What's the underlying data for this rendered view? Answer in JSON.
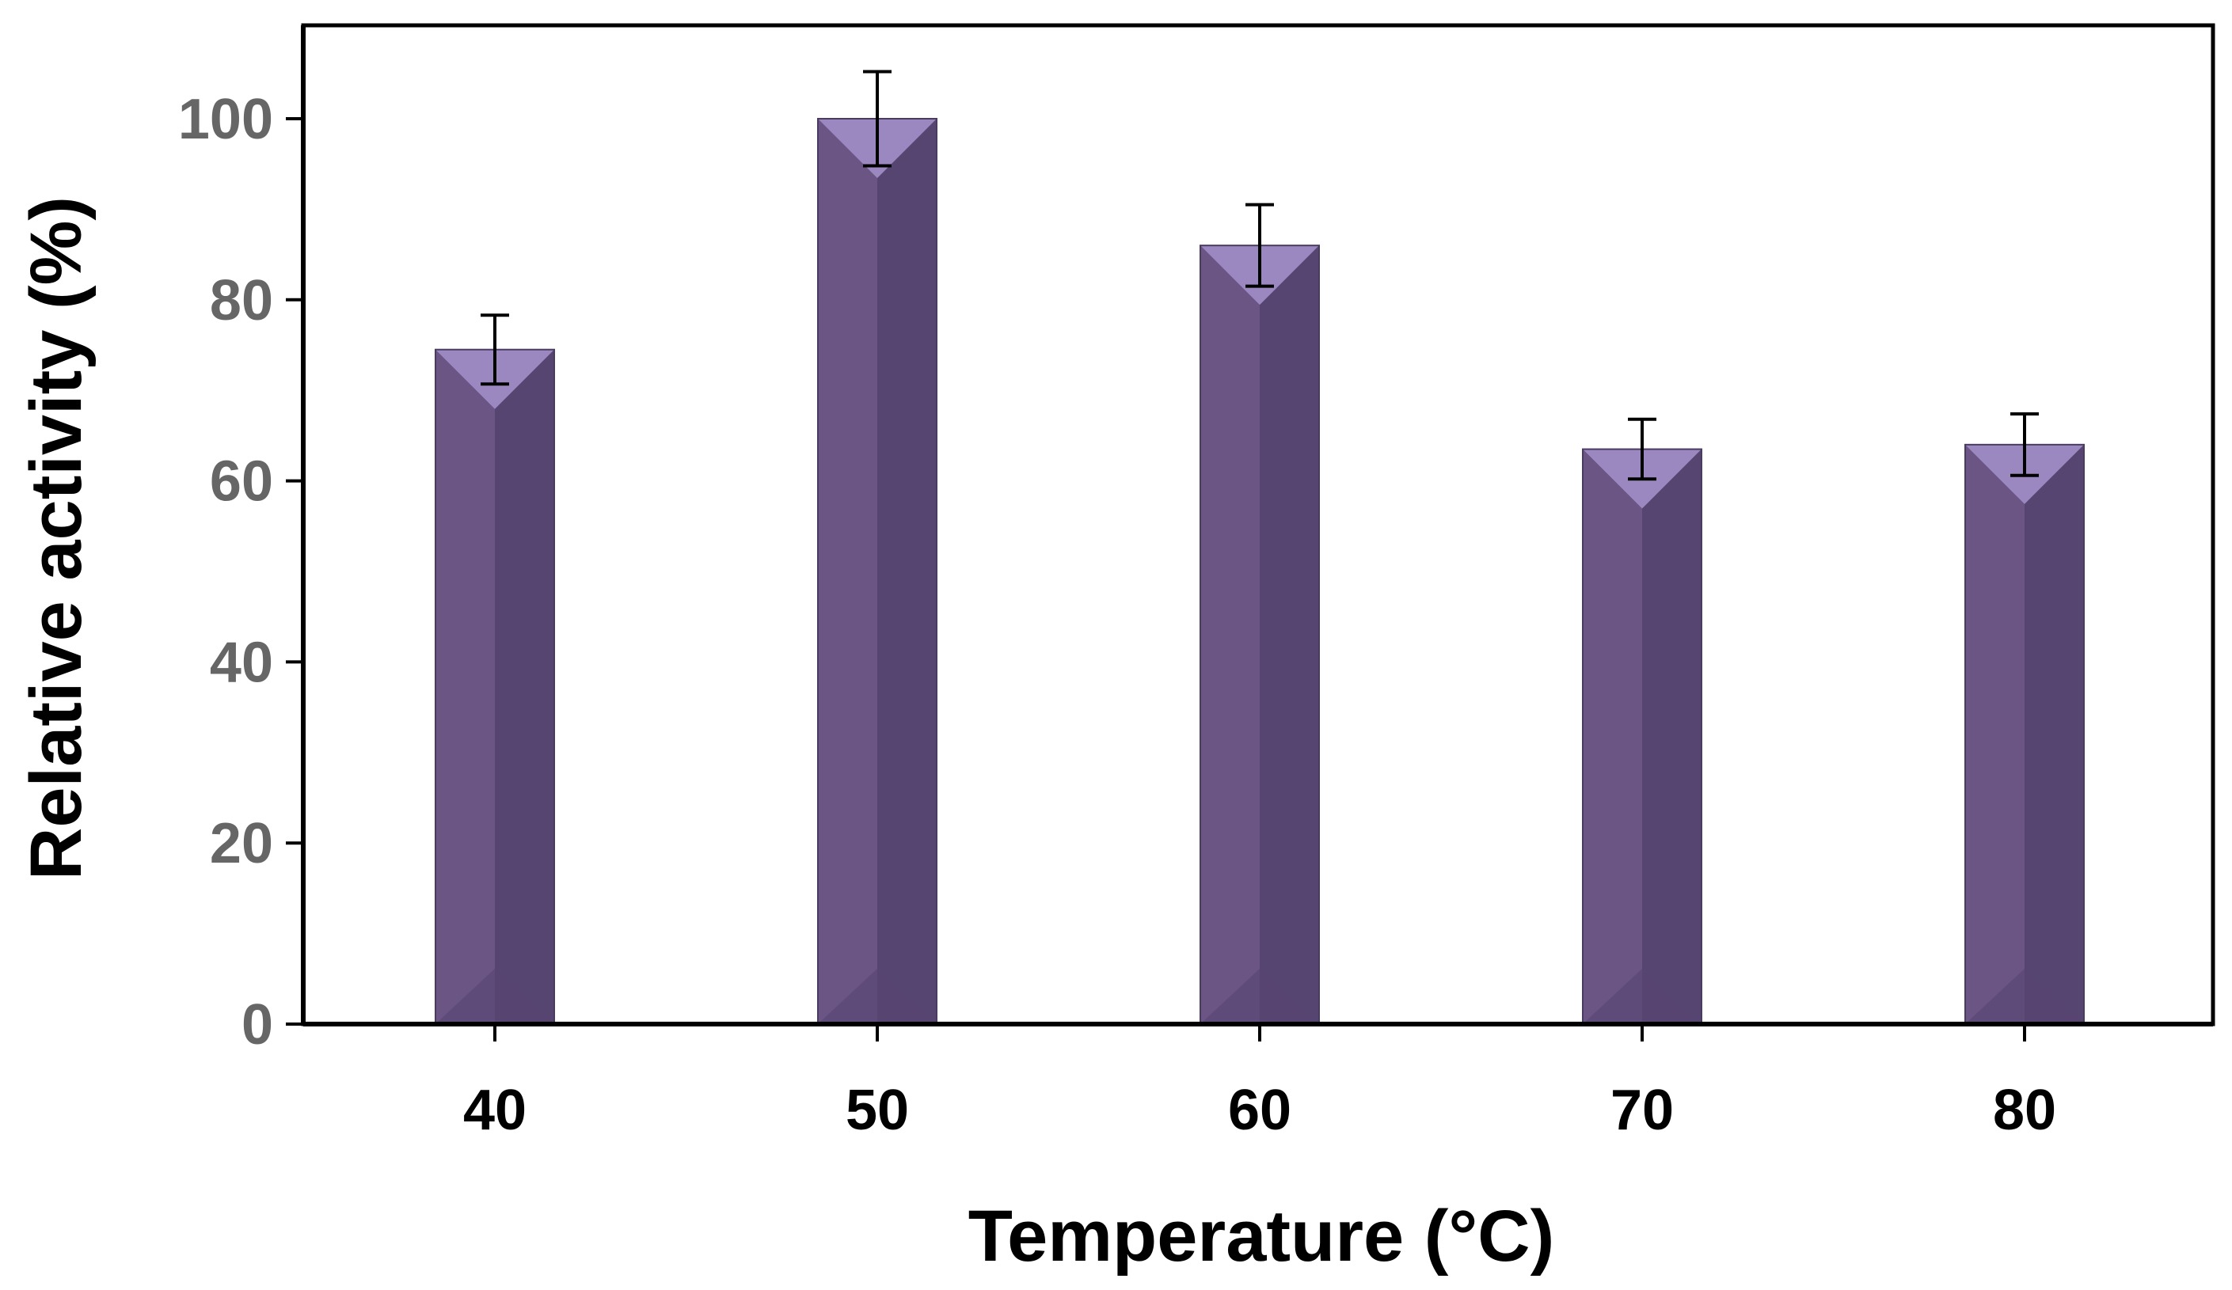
{
  "chart_data": {
    "type": "bar",
    "title": "",
    "xlabel": "Temperature (°C)",
    "ylabel": "Relative activity  (%)",
    "categories": [
      "40",
      "50",
      "60",
      "70",
      "80"
    ],
    "series": [
      {
        "name": "Relative activity",
        "values": [
          74.5,
          100,
          86,
          63.5,
          64
        ],
        "errors": [
          3.8,
          5.2,
          4.5,
          3.3,
          3.4
        ]
      }
    ],
    "ylim": [
      0,
      110
    ],
    "yticks": [
      0,
      20,
      40,
      60,
      80,
      100
    ],
    "grid": false,
    "legend": "none"
  },
  "colors": {
    "bar": "#6a5585",
    "bar_dark": "#574571",
    "bar_top": "#9c88c0",
    "axis": "#000000",
    "ytick_text": "#666666",
    "xtick_text": "#000000"
  }
}
